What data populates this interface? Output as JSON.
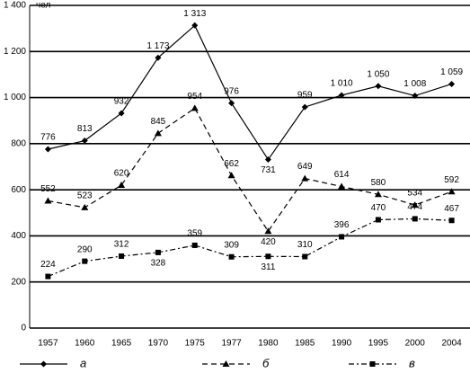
{
  "chart_data": {
    "type": "line",
    "y_unit": "чел",
    "categories": [
      "1957",
      "1960",
      "1965",
      "1970",
      "1975",
      "1977",
      "1980",
      "1985",
      "1990",
      "1995",
      "2000",
      "2004"
    ],
    "ylim": [
      0,
      1400
    ],
    "yticks": [
      0,
      200,
      400,
      600,
      800,
      {
        "value": 1000,
        "label": "1 000"
      },
      {
        "value": 1200,
        "label": "1 200"
      },
      {
        "value": 1400,
        "label": "1 400"
      }
    ],
    "grid": true,
    "series": [
      {
        "name": "а",
        "color": "#000000",
        "line_style": "solid",
        "marker": "diamond",
        "values": [
          776,
          813,
          932,
          1173,
          1313,
          976,
          731,
          959,
          1010,
          1050,
          1008,
          1059
        ],
        "value_labels": [
          "776",
          "813",
          "932",
          "1 173",
          "1 313",
          "976",
          "731",
          "959",
          "1 010",
          "1 050",
          "1 008",
          "1 059"
        ]
      },
      {
        "name": "б",
        "color": "#000000",
        "line_style": "dashed",
        "marker": "triangle",
        "values": [
          552,
          523,
          620,
          845,
          954,
          662,
          420,
          649,
          614,
          580,
          534,
          592
        ]
      },
      {
        "name": "в",
        "color": "#000000",
        "line_style": "dashdot",
        "marker": "square",
        "values": [
          224,
          290,
          312,
          328,
          359,
          309,
          311,
          310,
          396,
          470,
          474,
          467
        ]
      }
    ]
  }
}
